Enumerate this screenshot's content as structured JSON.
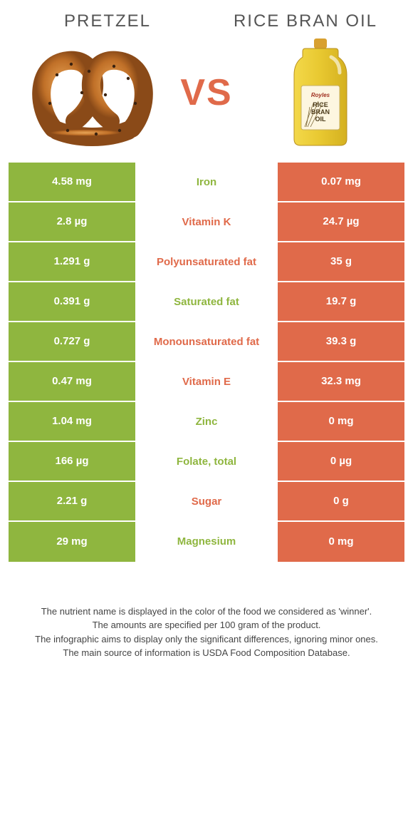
{
  "colors": {
    "left": "#8fb63f",
    "right": "#e06a4a",
    "bg": "#ffffff",
    "text": "#333333",
    "header_text": "#555555"
  },
  "header": {
    "left_title": "PRETZEL",
    "right_title": "RICE BRAN OIL",
    "vs": "VS"
  },
  "typography": {
    "header_fontsize": 24,
    "vs_fontsize": 52,
    "cell_fontsize": 15,
    "footnote_fontsize": 13
  },
  "rows": [
    {
      "left": "4.58 mg",
      "label": "Iron",
      "right": "0.07 mg",
      "winner": "left"
    },
    {
      "left": "2.8 µg",
      "label": "Vitamin K",
      "right": "24.7 µg",
      "winner": "right"
    },
    {
      "left": "1.291 g",
      "label": "Polyunsaturated fat",
      "right": "35 g",
      "winner": "right"
    },
    {
      "left": "0.391 g",
      "label": "Saturated fat",
      "right": "19.7 g",
      "winner": "left"
    },
    {
      "left": "0.727 g",
      "label": "Monounsaturated fat",
      "right": "39.3 g",
      "winner": "right"
    },
    {
      "left": "0.47 mg",
      "label": "Vitamin E",
      "right": "32.3 mg",
      "winner": "right"
    },
    {
      "left": "1.04 mg",
      "label": "Zinc",
      "right": "0 mg",
      "winner": "left"
    },
    {
      "left": "166 µg",
      "label": "Folate, total",
      "right": "0 µg",
      "winner": "left"
    },
    {
      "left": "2.21 g",
      "label": "Sugar",
      "right": "0 g",
      "winner": "right"
    },
    {
      "left": "29 mg",
      "label": "Magnesium",
      "right": "0 mg",
      "winner": "left"
    }
  ],
  "footnote": {
    "line1": "The nutrient name is displayed in the color of the food we considered as 'winner'.",
    "line2": "The amounts are specified per 100 gram of the product.",
    "line3": "The infographic aims to display only the significant differences, ignoring minor ones.",
    "line4": "The main source of information is USDA Food Composition Database."
  }
}
